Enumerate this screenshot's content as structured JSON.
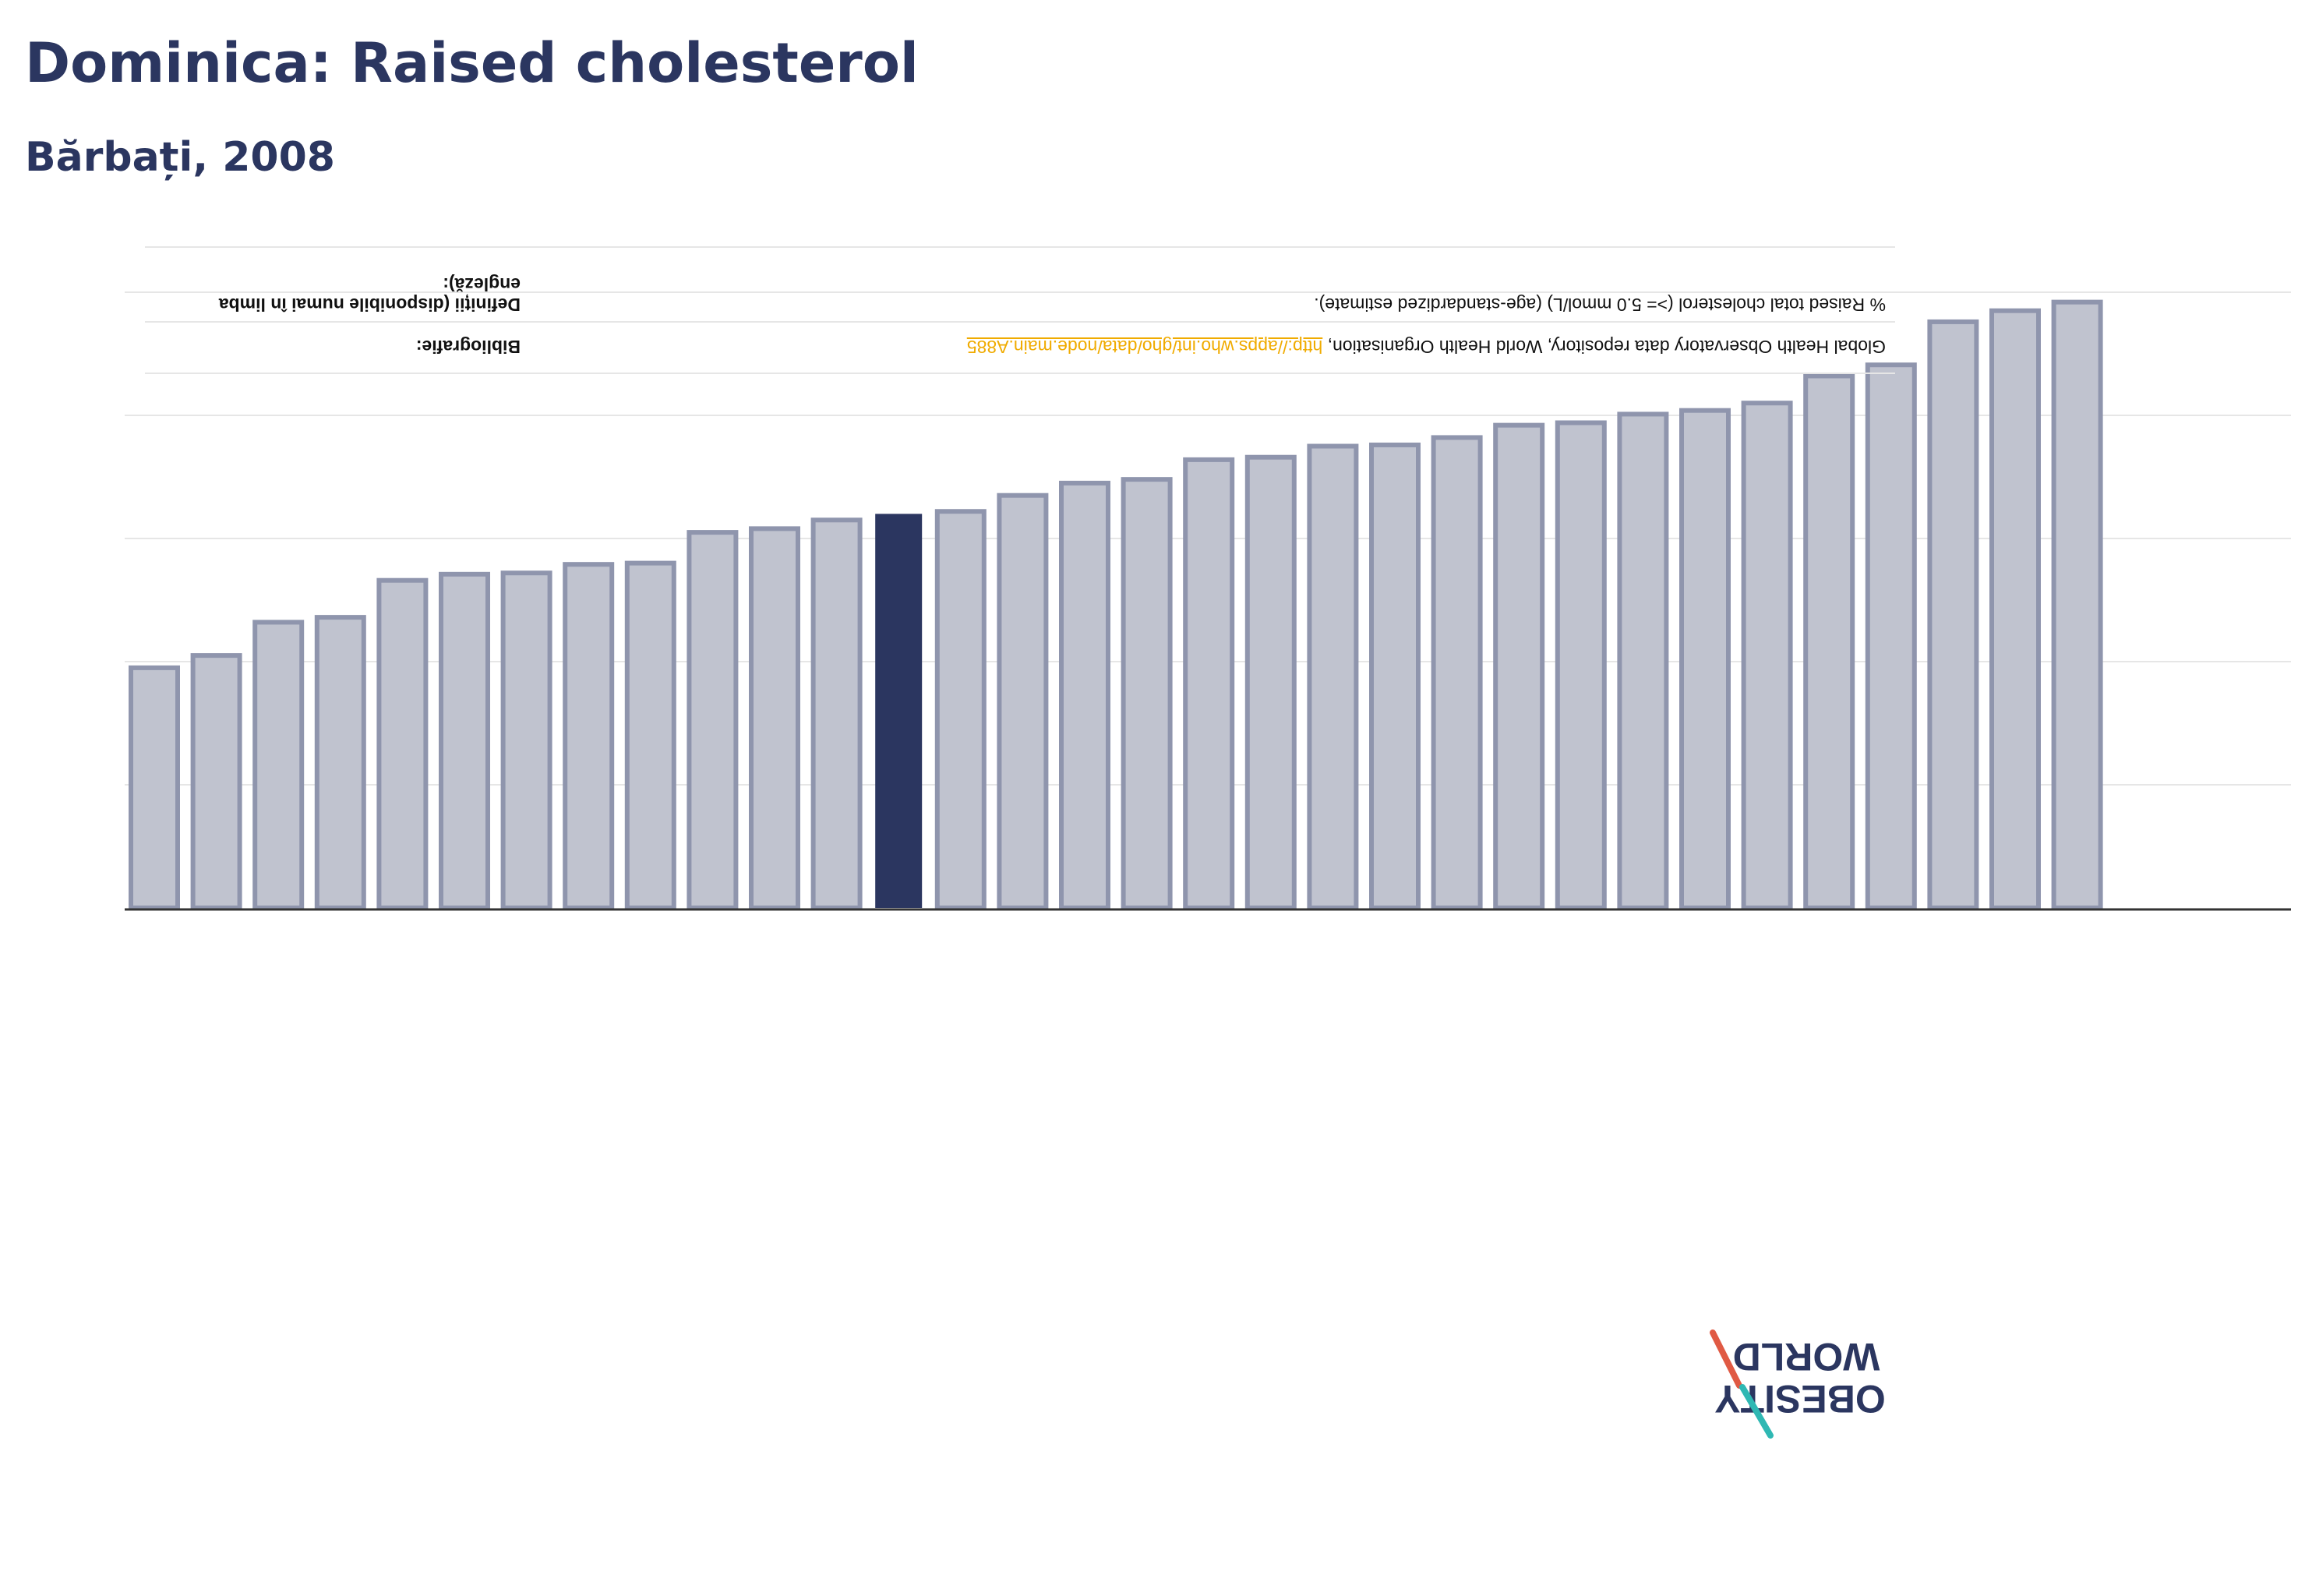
{
  "header": {
    "title": "Dominica: Raised cholesterol",
    "subtitle": "Bărbați, 2008"
  },
  "info": {
    "bibliography_label": "Bibliografie:",
    "bibliography_text": "Global Health Observatory data repository, World Health Organisation, ",
    "bibliography_link": "http://apps.who.int/gho/data/node.main.A885",
    "definition_label": "Definiții (disponibile numai în limba engleză):",
    "definition_text": "% Raised total cholesterol (>= 5.0 mmol/L) (age-standardized estimate)."
  },
  "logo": {
    "line1": "OBESITY",
    "line2": "WORLD"
  },
  "colors": {
    "highlight": "#2b3660",
    "bar_fill": "#c0c3cf",
    "bar_stroke": "#8f95ad",
    "grid": "#e6e6e6",
    "axis": "#333333",
    "logo_red": "#e05a44",
    "logo_teal": "#2fb8b3"
  },
  "chart_data": {
    "type": "bar",
    "title": "Dominica: Raised cholesterol",
    "subtitle": "Bărbați, 2008",
    "xlabel": "",
    "ylabel": "",
    "ylim": [
      0,
      50
    ],
    "grid": true,
    "highlight_index": 12,
    "values": [
      19.5,
      20.5,
      23.2,
      23.6,
      26.6,
      27.1,
      27.2,
      27.9,
      28.0,
      30.5,
      30.8,
      31.5,
      32.0,
      32.2,
      33.5,
      34.5,
      34.8,
      36.4,
      36.6,
      37.5,
      37.6,
      38.2,
      39.2,
      39.4,
      40.1,
      40.4,
      41.0,
      43.2,
      44.1,
      47.6,
      48.5,
      49.2
    ]
  }
}
